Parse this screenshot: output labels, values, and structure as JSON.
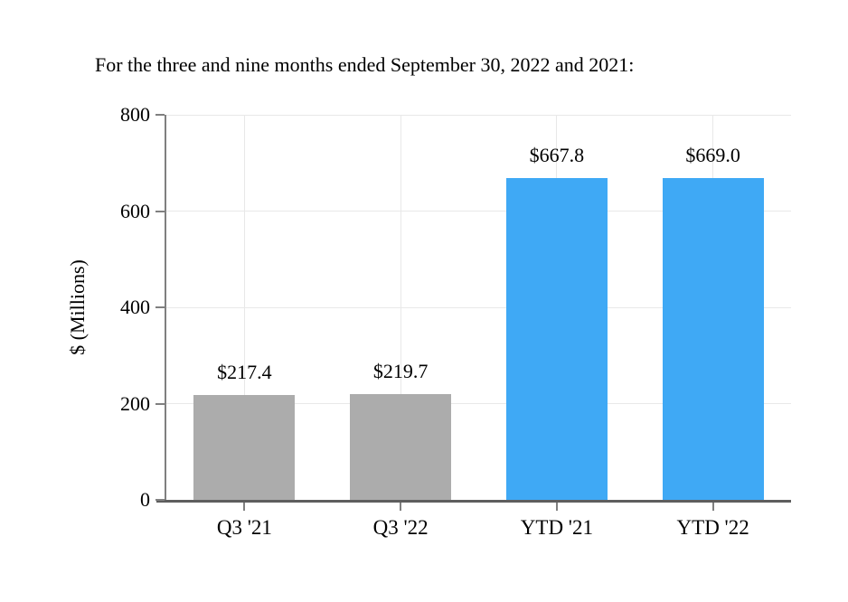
{
  "page": {
    "background": "#ffffff"
  },
  "chart_data": {
    "type": "bar",
    "title": "For the three and nine months ended September 30, 2022 and 2021:",
    "xlabel": "",
    "ylabel": "$ (Millions)",
    "categories": [
      "Q3 '21",
      "Q3 '22",
      "YTD '21",
      "YTD '22"
    ],
    "values": [
      217.4,
      219.7,
      667.8,
      669.0
    ],
    "data_labels": [
      "$217.4",
      "$219.7",
      "$667.8",
      "$669.0"
    ],
    "bar_colors": [
      "#ACACAC",
      "#ACACAC",
      "#3FA9F5",
      "#3FA9F5"
    ],
    "ylim": [
      0,
      800
    ],
    "yticks": [
      0,
      200,
      400,
      600,
      800
    ],
    "ytick_labels": [
      "0",
      "200",
      "400",
      "600",
      "800"
    ],
    "grid": true,
    "legend": "none",
    "colors": {
      "grid": "#E8E8E8",
      "y_axis": "#808080",
      "x_axis": "#5E5E5E",
      "tick": "#808080",
      "text": "#000000"
    }
  }
}
